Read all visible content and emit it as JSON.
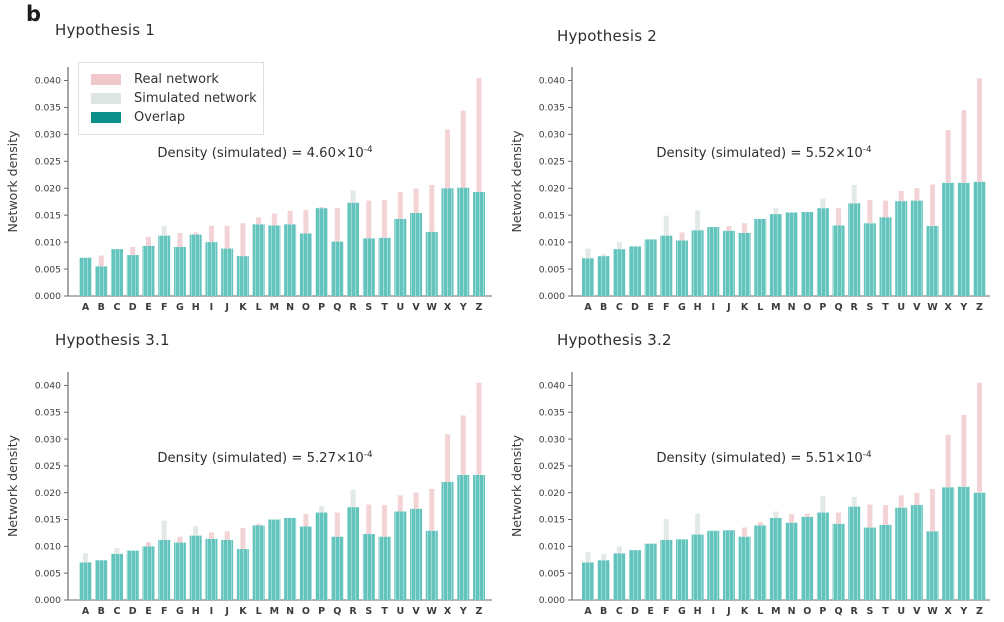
{
  "panel_label": "b",
  "colors": {
    "real": "#f3d3d6",
    "real_legend": "#f0c8cb",
    "simulated": "#e2e9e7",
    "simulated_legend": "#dee6e4",
    "overlap_bar": "#63c4be",
    "overlap_bar_stripe": "#9edad5",
    "overlap_legend": "#0c8f88",
    "axis": "#6a6a6a",
    "text": "#3b3b3b"
  },
  "legend": {
    "items": [
      {
        "label": "Real network",
        "color_key": "real_legend"
      },
      {
        "label": "Simulated network",
        "color_key": "simulated_legend"
      },
      {
        "label": "Overlap",
        "color_key": "overlap_legend"
      }
    ]
  },
  "y_axis": {
    "label": "Network density",
    "tick_labels": [
      "0.000",
      "0.005",
      "0.010",
      "0.015",
      "0.020",
      "0.025",
      "0.030",
      "0.035",
      "0.040"
    ],
    "tick_values": [
      0.0,
      0.005,
      0.01,
      0.015,
      0.02,
      0.025,
      0.03,
      0.035,
      0.04
    ],
    "range": [
      0,
      0.0425
    ]
  },
  "categories": [
    "A",
    "B",
    "C",
    "D",
    "E",
    "F",
    "G",
    "H",
    "I",
    "J",
    "K",
    "L",
    "M",
    "N",
    "O",
    "P",
    "Q",
    "R",
    "S",
    "T",
    "U",
    "V",
    "W",
    "X",
    "Y",
    "Z"
  ],
  "chart_data": [
    {
      "type": "bar",
      "title": "Hypothesis 1",
      "annotation": {
        "base": "Density (simulated) = 4.60×10",
        "exp": "-4"
      },
      "series": [
        {
          "name": "Real network",
          "values": [
            0.0071,
            0.0075,
            0.0087,
            0.0091,
            0.011,
            0.0112,
            0.0117,
            0.0118,
            0.013,
            0.013,
            0.0135,
            0.0146,
            0.0153,
            0.0158,
            0.016,
            0.0165,
            0.0163,
            0.0173,
            0.0177,
            0.0178,
            0.0193,
            0.0199,
            0.0206,
            0.0309,
            0.0344,
            0.0405
          ]
        },
        {
          "name": "Simulated network",
          "values": [
            0.0071,
            0.0055,
            0.0087,
            0.0076,
            0.0093,
            0.013,
            0.0091,
            0.0114,
            0.01,
            0.0088,
            0.0074,
            0.0133,
            0.0131,
            0.0133,
            0.0116,
            0.0163,
            0.0101,
            0.0196,
            0.0107,
            0.0108,
            0.0143,
            0.0154,
            0.0119,
            0.02,
            0.0201,
            0.0193
          ]
        },
        {
          "name": "Overlap",
          "values": [
            0.0071,
            0.0055,
            0.0087,
            0.0076,
            0.0093,
            0.0112,
            0.0091,
            0.0114,
            0.01,
            0.0088,
            0.0074,
            0.0133,
            0.0131,
            0.0133,
            0.0116,
            0.0163,
            0.0101,
            0.0173,
            0.0107,
            0.0108,
            0.0143,
            0.0154,
            0.0119,
            0.02,
            0.0201,
            0.0193
          ]
        }
      ]
    },
    {
      "type": "bar",
      "title": "Hypothesis 2",
      "annotation": {
        "base": "Density (simulated) = 5.52×10",
        "exp": "-4"
      },
      "series": [
        {
          "name": "Real network",
          "values": [
            0.007,
            0.0074,
            0.0087,
            0.0092,
            0.0105,
            0.0112,
            0.0118,
            0.0122,
            0.0128,
            0.013,
            0.0135,
            0.0143,
            0.0152,
            0.0155,
            0.0156,
            0.0163,
            0.0163,
            0.0172,
            0.0178,
            0.0177,
            0.0195,
            0.02,
            0.0207,
            0.0308,
            0.0345,
            0.0404
          ]
        },
        {
          "name": "Simulated network",
          "values": [
            0.0088,
            0.0078,
            0.01,
            0.0092,
            0.0105,
            0.0149,
            0.0103,
            0.0159,
            0.0128,
            0.0121,
            0.0117,
            0.0143,
            0.0164,
            0.0155,
            0.0156,
            0.0181,
            0.0131,
            0.0206,
            0.0135,
            0.0146,
            0.0176,
            0.0177,
            0.013,
            0.021,
            0.021,
            0.0212
          ]
        },
        {
          "name": "Overlap",
          "values": [
            0.007,
            0.0074,
            0.0087,
            0.0092,
            0.0105,
            0.0112,
            0.0103,
            0.0122,
            0.0128,
            0.0121,
            0.0117,
            0.0143,
            0.0152,
            0.0155,
            0.0156,
            0.0163,
            0.0131,
            0.0172,
            0.0135,
            0.0146,
            0.0176,
            0.0177,
            0.013,
            0.021,
            0.021,
            0.0212
          ]
        }
      ]
    },
    {
      "type": "bar",
      "title": "Hypothesis 3.1",
      "annotation": {
        "base": "Density (simulated) = 5.27×10",
        "exp": "-4"
      },
      "series": [
        {
          "name": "Real network",
          "values": [
            0.007,
            0.0074,
            0.0086,
            0.0092,
            0.0108,
            0.0112,
            0.0118,
            0.012,
            0.0126,
            0.0128,
            0.0134,
            0.0142,
            0.015,
            0.0153,
            0.016,
            0.0163,
            0.0163,
            0.0173,
            0.0178,
            0.0177,
            0.0195,
            0.02,
            0.0207,
            0.0309,
            0.0344,
            0.0405
          ]
        },
        {
          "name": "Simulated network",
          "values": [
            0.0087,
            0.0074,
            0.0097,
            0.0092,
            0.01,
            0.0148,
            0.0107,
            0.0138,
            0.0114,
            0.0112,
            0.0095,
            0.0139,
            0.015,
            0.0153,
            0.0137,
            0.0175,
            0.0118,
            0.0206,
            0.0123,
            0.0118,
            0.0165,
            0.017,
            0.0129,
            0.022,
            0.0233,
            0.0233
          ]
        },
        {
          "name": "Overlap",
          "values": [
            0.007,
            0.0074,
            0.0086,
            0.0092,
            0.01,
            0.0112,
            0.0107,
            0.012,
            0.0114,
            0.0112,
            0.0095,
            0.0139,
            0.015,
            0.0153,
            0.0137,
            0.0163,
            0.0118,
            0.0173,
            0.0123,
            0.0118,
            0.0165,
            0.017,
            0.0129,
            0.022,
            0.0233,
            0.0233
          ]
        }
      ]
    },
    {
      "type": "bar",
      "title": "Hypothesis 3.2",
      "annotation": {
        "base": "Density (simulated) = 5.51×10",
        "exp": "-4"
      },
      "series": [
        {
          "name": "Real network",
          "values": [
            0.007,
            0.0074,
            0.0087,
            0.0093,
            0.0105,
            0.0112,
            0.0113,
            0.0122,
            0.0129,
            0.013,
            0.0135,
            0.0145,
            0.0153,
            0.016,
            0.0161,
            0.0163,
            0.0163,
            0.0174,
            0.0178,
            0.0177,
            0.0195,
            0.02,
            0.0207,
            0.0308,
            0.0345,
            0.0405
          ]
        },
        {
          "name": "Simulated network",
          "values": [
            0.0089,
            0.0086,
            0.01,
            0.0093,
            0.0105,
            0.0151,
            0.0113,
            0.0161,
            0.0129,
            0.013,
            0.0118,
            0.0139,
            0.0165,
            0.0144,
            0.0155,
            0.0194,
            0.0142,
            0.0192,
            0.0135,
            0.014,
            0.0172,
            0.0177,
            0.0128,
            0.021,
            0.0211,
            0.02
          ]
        },
        {
          "name": "Overlap",
          "values": [
            0.007,
            0.0074,
            0.0087,
            0.0093,
            0.0105,
            0.0112,
            0.0113,
            0.0122,
            0.0129,
            0.013,
            0.0118,
            0.0139,
            0.0153,
            0.0144,
            0.0155,
            0.0163,
            0.0142,
            0.0174,
            0.0135,
            0.014,
            0.0172,
            0.0177,
            0.0128,
            0.021,
            0.0211,
            0.02
          ]
        }
      ]
    }
  ]
}
